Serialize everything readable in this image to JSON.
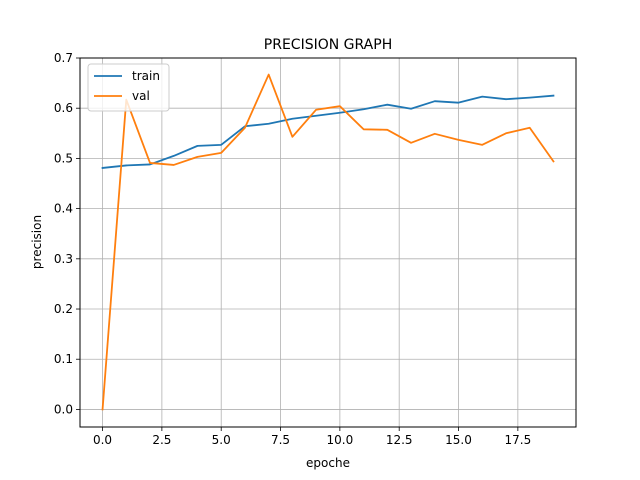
{
  "chart_data": {
    "type": "line",
    "title": "PRECISION GRAPH",
    "xlabel": "epoche",
    "ylabel": "precision",
    "xlim": [
      -0.95,
      19.95
    ],
    "ylim": [
      -0.035,
      0.7
    ],
    "xticks": [
      0,
      2.5,
      5,
      7.5,
      10,
      12.5,
      15,
      17.5
    ],
    "xtick_labels": [
      "0.0",
      "2.5",
      "5.0",
      "7.5",
      "10.0",
      "12.5",
      "15.0",
      "17.5"
    ],
    "yticks": [
      0,
      0.1,
      0.2,
      0.3,
      0.4,
      0.5,
      0.6,
      0.7
    ],
    "ytick_labels": [
      "0.0",
      "0.1",
      "0.2",
      "0.3",
      "0.4",
      "0.5",
      "0.6",
      "0.7"
    ],
    "grid": true,
    "legend_position": "top-left",
    "x": [
      0,
      1,
      2,
      3,
      4,
      5,
      6,
      7,
      8,
      9,
      10,
      11,
      12,
      13,
      14,
      15,
      16,
      17,
      18,
      19
    ],
    "series": [
      {
        "name": "train",
        "color": "#1f77b4",
        "values": [
          0.481,
          0.486,
          0.488,
          0.505,
          0.525,
          0.527,
          0.564,
          0.569,
          0.579,
          0.585,
          0.591,
          0.598,
          0.607,
          0.599,
          0.614,
          0.611,
          0.623,
          0.618,
          0.621,
          0.625
        ]
      },
      {
        "name": "val",
        "color": "#ff7f0e",
        "values": [
          0.0,
          0.617,
          0.491,
          0.487,
          0.503,
          0.511,
          0.561,
          0.667,
          0.543,
          0.597,
          0.604,
          0.558,
          0.557,
          0.531,
          0.549,
          0.537,
          0.527,
          0.55,
          0.561,
          0.494
        ]
      }
    ]
  }
}
